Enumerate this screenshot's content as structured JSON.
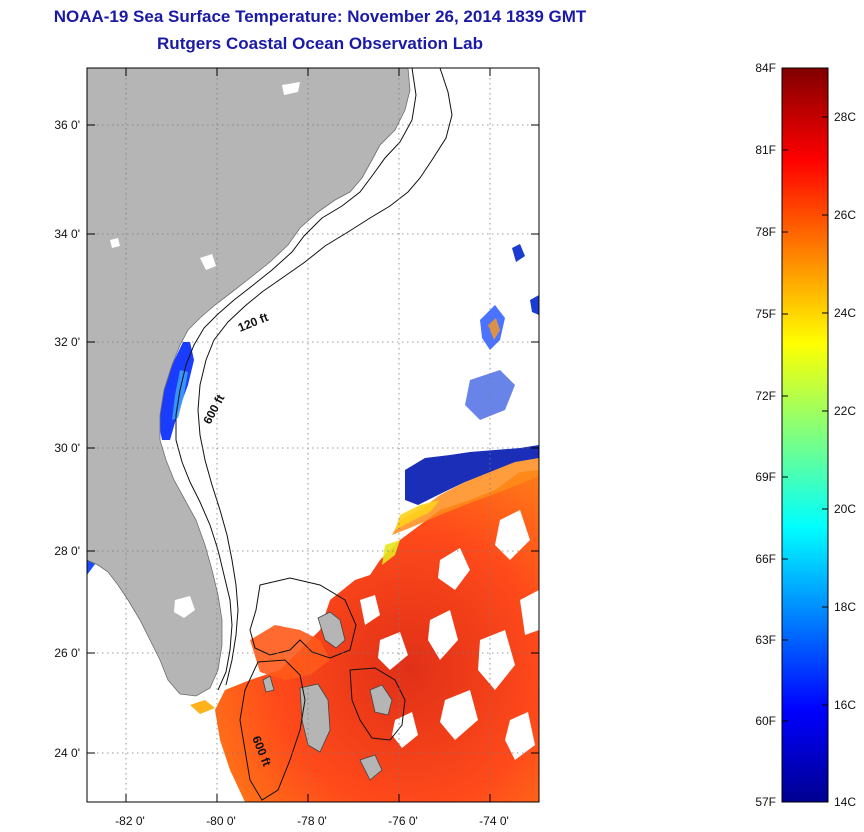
{
  "header": {
    "title": "NOAA-19 Sea Surface Temperature:  November 26, 2014 1839 GMT",
    "subtitle": "Rutgers Coastal Ocean Observation Lab"
  },
  "map": {
    "lat_labels": [
      "36 0'",
      "34 0'",
      "32 0'",
      "30 0'",
      "28 0'",
      "26 0'",
      "24 0'"
    ],
    "lon_labels": [
      "-82 0'",
      "-80 0'",
      "-78 0'",
      "-76 0'",
      "-74 0'"
    ],
    "contour_labels": [
      "120 ft",
      "600 ft",
      "600 ft"
    ],
    "colors": {
      "land": "#b5b5b5",
      "no_data": "#ffffff",
      "frame": "#000000"
    }
  },
  "colorbar": {
    "fahrenheit_labels": [
      "84F",
      "81F",
      "78F",
      "75F",
      "72F",
      "69F",
      "66F",
      "63F",
      "60F",
      "57F"
    ],
    "celsius_labels": [
      "28C",
      "26C",
      "24C",
      "22C",
      "20C",
      "18C",
      "16C",
      "14C"
    ],
    "range_c": [
      14,
      29
    ]
  }
}
